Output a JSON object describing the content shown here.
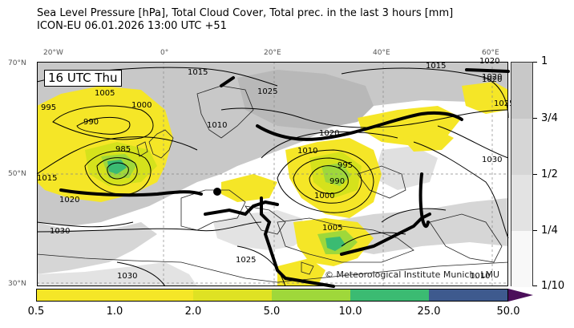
{
  "title": {
    "line1": "Sea Level Pressure [hPa], Total Cloud Cover, Total prec. in the last 3 hours [mm]",
    "line2": "ICON-EU 06.01.2026 13:00 UTC +51"
  },
  "map": {
    "valid_time": "16 UTC Thu",
    "copyright": "© Meteorological Institute Munich, LMU",
    "lon_labels": [
      "20°W",
      "0°",
      "20°E",
      "40°E",
      "60°E"
    ],
    "lat_labels": [
      "70°N",
      "50°N",
      "30°N"
    ],
    "isobar_labels": [
      "1015",
      "1020",
      "1025",
      "1005",
      "995",
      "990",
      "1000",
      "1010",
      "1015",
      "1020",
      "985",
      "1020",
      "1030",
      "1010",
      "995",
      "990",
      "1000",
      "1005",
      "1025",
      "1030",
      "1020",
      "1025",
      "1030",
      "1015",
      "1020",
      "1010"
    ]
  },
  "cloud_cover_colorbar": {
    "labels": [
      "1",
      "3/4",
      "1/2",
      "1/4",
      "1/10"
    ],
    "colors": [
      "#c8c8c8",
      "#d6d6d6",
      "#e3e3e3",
      "#eeeeee",
      "#f8f8f8"
    ]
  },
  "precip_colorbar": {
    "labels": [
      "0.5",
      "1.0",
      "2.0",
      "5.0",
      "10.0",
      "25.0",
      "50.0"
    ],
    "colors": [
      "#f5e627",
      "#f5e627",
      "#d5e21c",
      "#9fd83a",
      "#3bbb72",
      "#3e5a8e",
      "#4b0f5a"
    ]
  }
}
